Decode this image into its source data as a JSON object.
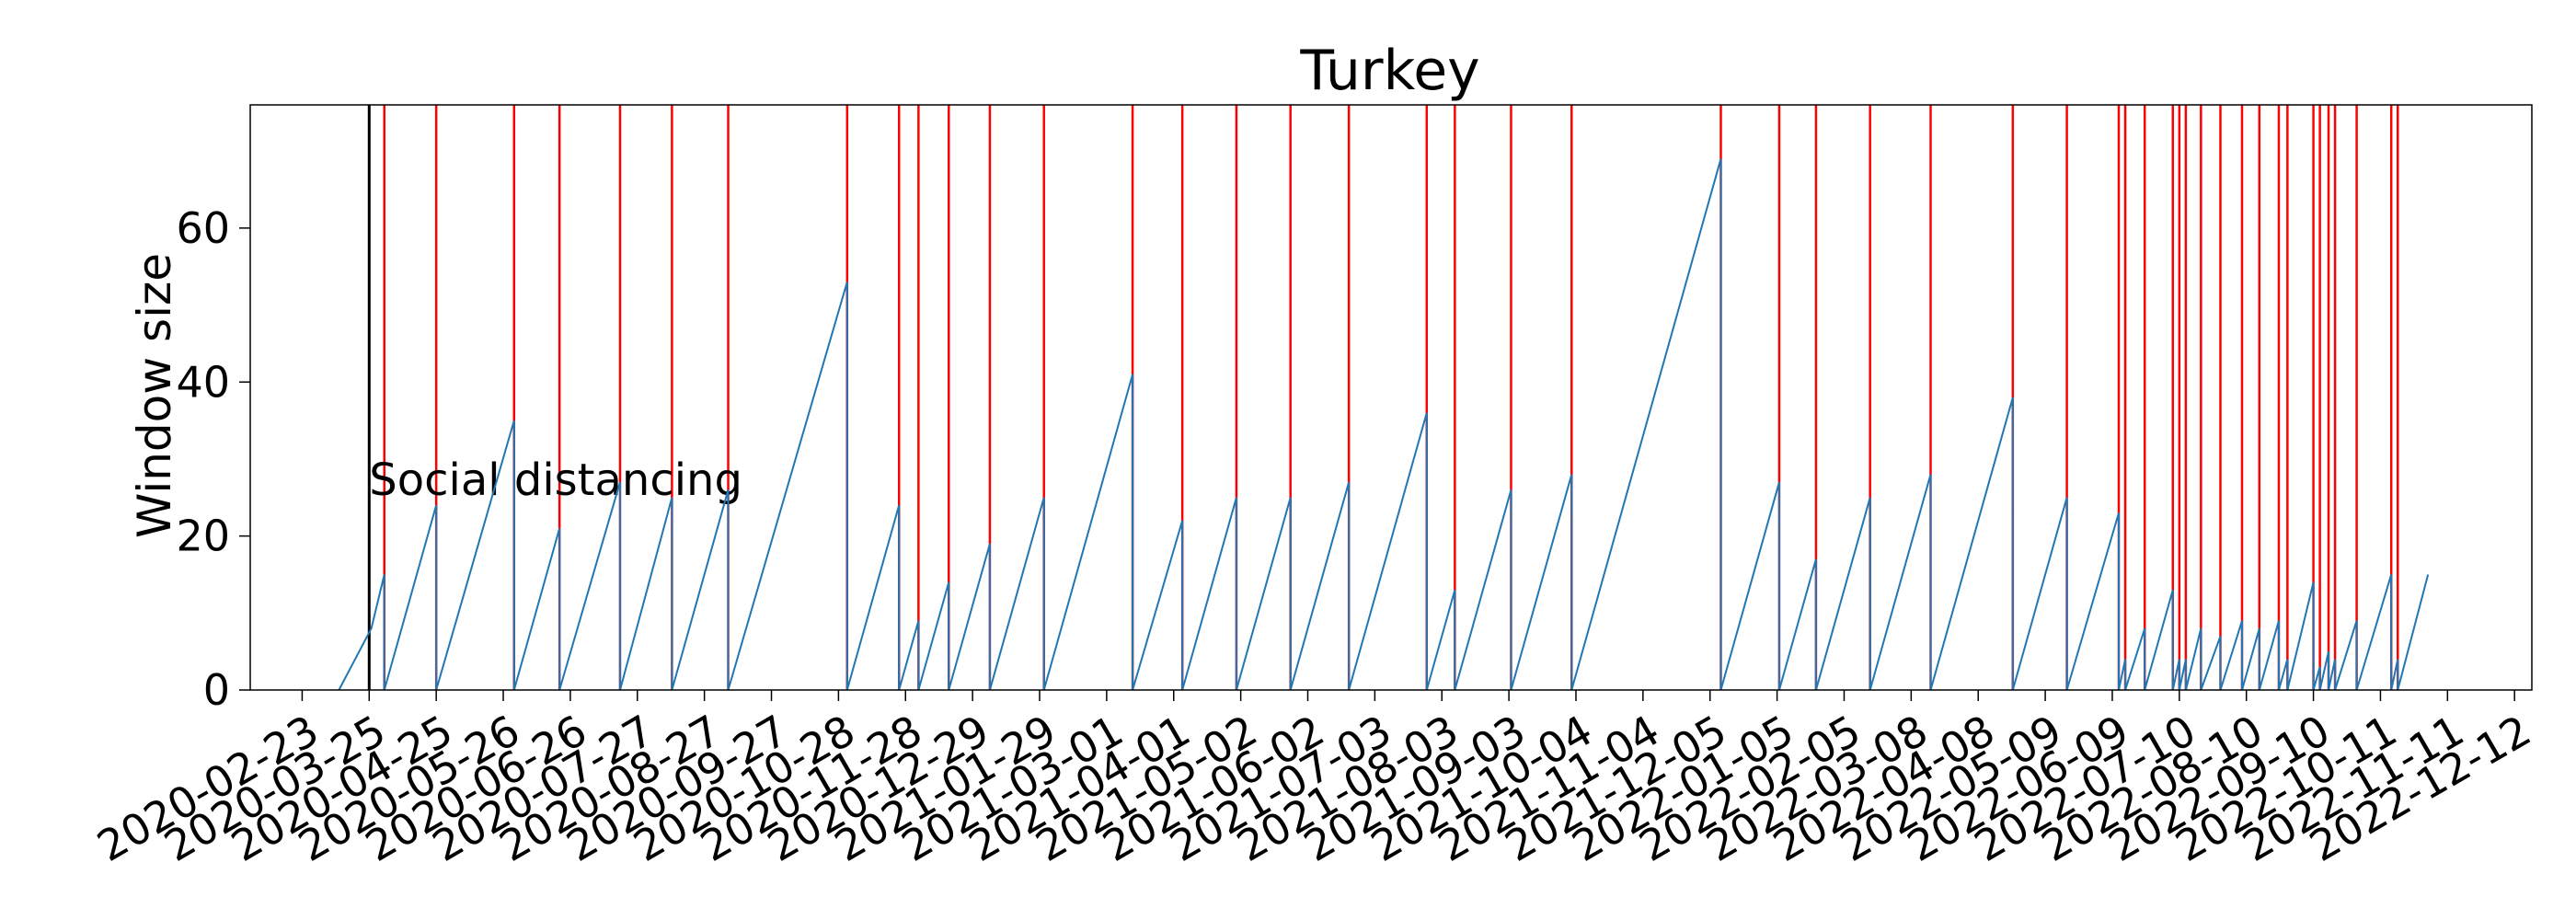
{
  "chart_data": {
    "type": "line",
    "title": "Turkey",
    "xlabel": "",
    "ylabel": "Window size",
    "x_type": "date",
    "xlim": [
      "2020-01-30",
      "2022-12-20"
    ],
    "ylim": [
      0,
      76
    ],
    "yticks": [
      0,
      20,
      40,
      60
    ],
    "xticks": [
      "2020-02-23",
      "2020-03-25",
      "2020-04-25",
      "2020-05-26",
      "2020-06-26",
      "2020-07-27",
      "2020-08-27",
      "2020-09-27",
      "2020-10-28",
      "2020-11-28",
      "2020-12-29",
      "2021-01-29",
      "2021-03-01",
      "2021-04-01",
      "2021-05-02",
      "2021-06-02",
      "2021-07-03",
      "2021-08-03",
      "2021-09-03",
      "2021-10-04",
      "2021-11-04",
      "2021-12-05",
      "2022-01-05",
      "2022-02-05",
      "2022-03-08",
      "2022-04-08",
      "2022-05-09",
      "2022-06-09",
      "2022-07-10",
      "2022-08-10",
      "2022-09-10",
      "2022-10-11",
      "2022-11-11",
      "2022-12-12"
    ],
    "grid": false,
    "colors": {
      "series": "#1f77b4",
      "changepoint": "#ff0000",
      "intervention": "#000000"
    },
    "series": [
      {
        "values": [
          [
            "2020-03-11",
            0
          ],
          [
            "2020-03-26",
            8
          ],
          [
            "2020-04-01",
            15
          ],
          [
            "2020-04-01",
            0
          ],
          [
            "2020-04-25",
            24
          ],
          [
            "2020-04-25",
            0
          ],
          [
            "2020-05-31",
            35
          ],
          [
            "2020-05-31",
            0
          ],
          [
            "2020-06-21",
            21
          ],
          [
            "2020-06-21",
            0
          ],
          [
            "2020-07-19",
            27
          ],
          [
            "2020-07-19",
            0
          ],
          [
            "2020-08-12",
            25
          ],
          [
            "2020-08-12",
            0
          ],
          [
            "2020-09-07",
            26
          ],
          [
            "2020-09-07",
            0
          ],
          [
            "2020-11-01",
            53
          ],
          [
            "2020-11-01",
            0
          ],
          [
            "2020-11-25",
            24
          ],
          [
            "2020-11-25",
            0
          ],
          [
            "2020-12-04",
            9
          ],
          [
            "2020-12-04",
            0
          ],
          [
            "2020-12-18",
            14
          ],
          [
            "2020-12-18",
            0
          ],
          [
            "2021-01-06",
            19
          ],
          [
            "2021-01-06",
            0
          ],
          [
            "2021-01-31",
            25
          ],
          [
            "2021-01-31",
            0
          ],
          [
            "2021-03-13",
            41
          ],
          [
            "2021-03-13",
            0
          ],
          [
            "2021-04-05",
            22
          ],
          [
            "2021-04-05",
            0
          ],
          [
            "2021-04-30",
            25
          ],
          [
            "2021-04-30",
            0
          ],
          [
            "2021-05-25",
            25
          ],
          [
            "2021-05-25",
            0
          ],
          [
            "2021-06-21",
            27
          ],
          [
            "2021-06-21",
            0
          ],
          [
            "2021-07-27",
            36
          ],
          [
            "2021-07-27",
            0
          ],
          [
            "2021-08-09",
            13
          ],
          [
            "2021-08-09",
            0
          ],
          [
            "2021-09-04",
            26
          ],
          [
            "2021-09-04",
            0
          ],
          [
            "2021-10-02",
            28
          ],
          [
            "2021-10-02",
            0
          ],
          [
            "2021-12-10",
            69
          ],
          [
            "2021-12-10",
            0
          ],
          [
            "2022-01-06",
            27
          ],
          [
            "2022-01-06",
            0
          ],
          [
            "2022-01-23",
            17
          ],
          [
            "2022-01-23",
            0
          ],
          [
            "2022-02-17",
            25
          ],
          [
            "2022-02-17",
            0
          ],
          [
            "2022-03-17",
            28
          ],
          [
            "2022-03-17",
            0
          ],
          [
            "2022-04-24",
            38
          ],
          [
            "2022-04-24",
            0
          ],
          [
            "2022-05-19",
            25
          ],
          [
            "2022-05-19",
            0
          ],
          [
            "2022-06-12",
            23
          ],
          [
            "2022-06-12",
            0
          ],
          [
            "2022-06-15",
            4
          ],
          [
            "2022-06-15",
            0
          ],
          [
            "2022-06-24",
            8
          ],
          [
            "2022-06-24",
            0
          ],
          [
            "2022-07-07",
            13
          ],
          [
            "2022-07-07",
            0
          ],
          [
            "2022-07-10",
            4
          ],
          [
            "2022-07-10",
            0
          ],
          [
            "2022-07-13",
            4
          ],
          [
            "2022-07-13",
            0
          ],
          [
            "2022-07-20",
            8
          ],
          [
            "2022-07-20",
            0
          ],
          [
            "2022-07-29",
            7
          ],
          [
            "2022-07-29",
            0
          ],
          [
            "2022-08-08",
            9
          ],
          [
            "2022-08-08",
            0
          ],
          [
            "2022-08-16",
            8
          ],
          [
            "2022-08-16",
            0
          ],
          [
            "2022-08-25",
            9
          ],
          [
            "2022-08-25",
            0
          ],
          [
            "2022-08-29",
            4
          ],
          [
            "2022-08-29",
            0
          ],
          [
            "2022-09-10",
            14
          ],
          [
            "2022-09-10",
            0
          ],
          [
            "2022-09-13",
            3
          ],
          [
            "2022-09-13",
            0
          ],
          [
            "2022-09-17",
            5
          ],
          [
            "2022-09-17",
            0
          ],
          [
            "2022-09-20",
            4
          ],
          [
            "2022-09-20",
            0
          ],
          [
            "2022-09-30",
            9
          ],
          [
            "2022-09-30",
            0
          ],
          [
            "2022-10-16",
            15
          ],
          [
            "2022-10-16",
            0
          ],
          [
            "2022-10-19",
            4
          ],
          [
            "2022-10-19",
            0
          ],
          [
            "2022-11-02",
            15
          ]
        ]
      }
    ],
    "changepoints": [
      "2020-04-01",
      "2020-04-25",
      "2020-05-31",
      "2020-06-21",
      "2020-07-19",
      "2020-08-12",
      "2020-09-07",
      "2020-11-01",
      "2020-11-25",
      "2020-12-04",
      "2020-12-18",
      "2021-01-06",
      "2021-01-31",
      "2021-03-13",
      "2021-04-05",
      "2021-04-30",
      "2021-05-25",
      "2021-06-21",
      "2021-07-27",
      "2021-08-09",
      "2021-09-04",
      "2021-10-02",
      "2021-12-10",
      "2022-01-06",
      "2022-01-23",
      "2022-02-17",
      "2022-03-17",
      "2022-04-24",
      "2022-05-19",
      "2022-06-12",
      "2022-06-15",
      "2022-06-24",
      "2022-07-07",
      "2022-07-10",
      "2022-07-13",
      "2022-07-20",
      "2022-07-29",
      "2022-08-08",
      "2022-08-16",
      "2022-08-25",
      "2022-08-29",
      "2022-09-10",
      "2022-09-13",
      "2022-09-17",
      "2022-09-20",
      "2022-09-30",
      "2022-10-16",
      "2022-10-19"
    ],
    "annotations": [
      {
        "text": "Social distancing",
        "x": "2020-03-25"
      }
    ]
  }
}
